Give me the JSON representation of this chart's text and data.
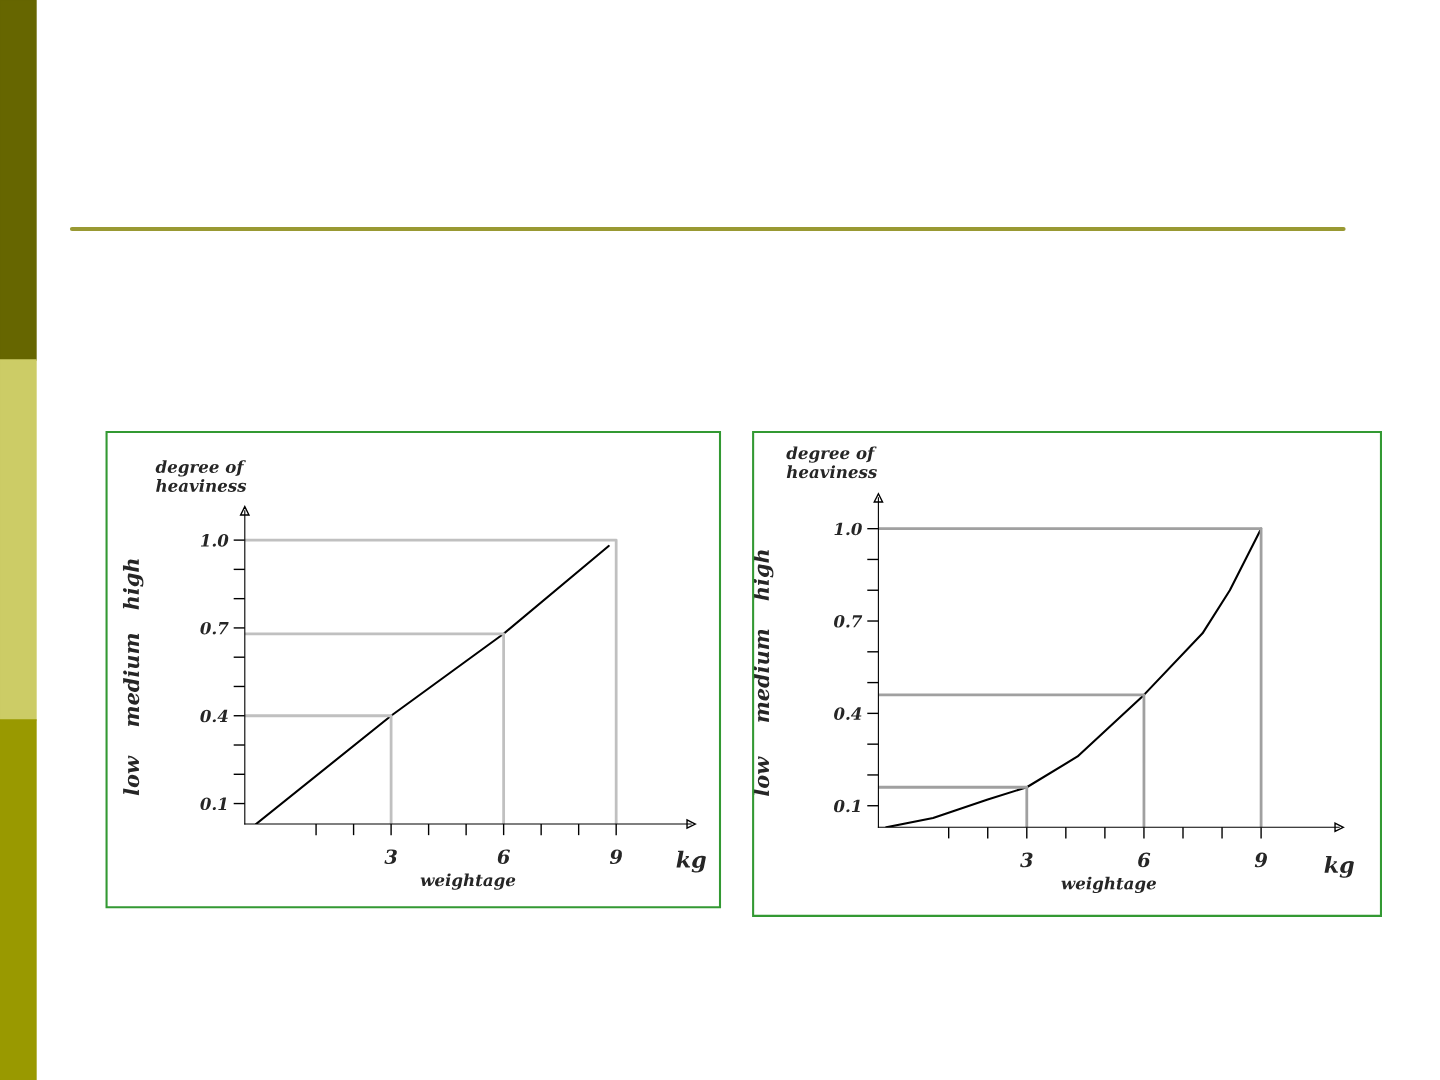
{
  "chart_data": [
    {
      "type": "line",
      "xlabel": "weightage",
      "ylabel": "degree of\nheaviness",
      "annotations": [
        "kg",
        "low",
        "medium",
        "high"
      ],
      "x": [
        -0.6,
        3,
        6,
        8.8
      ],
      "series": [
        {
          "color": "#000000",
          "values": [
            0.03,
            0.4,
            0.68,
            0.98
          ]
        },
        {
          "color": "#c0c0c0",
          "x": [
            -0.9,
            3,
            3
          ],
          "values": [
            0.4,
            0.4,
            0.03
          ]
        },
        {
          "color": "#c0c0c0",
          "x": [
            -0.9,
            6,
            6
          ],
          "values": [
            0.68,
            0.68,
            0.03
          ]
        },
        {
          "color": "#c0c0c0",
          "x": [
            -0.9,
            9,
            9
          ],
          "values": [
            1.0,
            1.0,
            0.03
          ]
        }
      ],
      "xlim": [
        -0.9,
        11
      ],
      "ylim": [
        0.03,
        1.1
      ],
      "xticks": [
        {
          "value": 1,
          "label": null
        },
        {
          "value": 2,
          "label": null
        },
        3,
        {
          "value": 4,
          "label": null
        },
        {
          "value": 5,
          "label": null
        },
        6,
        {
          "value": 7,
          "label": null
        },
        {
          "value": 8,
          "label": null
        },
        9
      ],
      "yticks": [
        0.1,
        {
          "value": 0.2,
          "label": null
        },
        {
          "value": 0.3,
          "label": null
        },
        0.4,
        {
          "value": 0.5,
          "label": null
        },
        {
          "value": 0.6,
          "label": null
        },
        0.7,
        {
          "value": 0.8,
          "label": null
        },
        {
          "value": 0.9,
          "label": null
        },
        {
          "value": 1.0,
          "label": "1.0"
        }
      ],
      "grid": false,
      "legend": false,
      "marker": "none",
      "line_style": "solid"
    },
    {
      "type": "line",
      "xlabel": "weightage",
      "ylabel": "degree of\nheaviness",
      "annotations": [
        "kg",
        "low",
        "medium",
        "high"
      ],
      "x": [
        -0.6,
        0.6,
        2,
        3,
        4.3,
        6,
        7.5,
        8.2,
        9
      ],
      "series": [
        {
          "color": "#000000",
          "values": [
            0.03,
            0.06,
            0.12,
            0.16,
            0.26,
            0.46,
            0.66,
            0.8,
            1.0
          ]
        },
        {
          "color": "#a0a0a0",
          "x": [
            -0.8,
            3,
            3
          ],
          "values": [
            0.16,
            0.16,
            0.03
          ]
        },
        {
          "color": "#a0a0a0",
          "x": [
            -0.8,
            6,
            6
          ],
          "values": [
            0.46,
            0.46,
            0.03
          ]
        },
        {
          "color": "#a0a0a0",
          "x": [
            -0.8,
            9,
            9
          ],
          "values": [
            1.0,
            1.0,
            0.03
          ]
        }
      ],
      "xlim": [
        -0.8,
        11
      ],
      "ylim": [
        0.03,
        1.1
      ],
      "xticks": [
        {
          "value": 1,
          "label": null
        },
        {
          "value": 2,
          "label": null
        },
        3,
        {
          "value": 4,
          "label": null
        },
        {
          "value": 5,
          "label": null
        },
        6,
        {
          "value": 7,
          "label": null
        },
        {
          "value": 8,
          "label": null
        },
        9
      ],
      "yticks": [
        0.1,
        {
          "value": 0.2,
          "label": null
        },
        {
          "value": 0.3,
          "label": null
        },
        0.4,
        {
          "value": 0.5,
          "label": null
        },
        {
          "value": 0.6,
          "label": null
        },
        0.7,
        {
          "value": 0.8,
          "label": null
        },
        {
          "value": 0.9,
          "label": null
        },
        {
          "value": 1.0,
          "label": "1.0"
        }
      ],
      "grid": false,
      "legend": false,
      "marker": "none",
      "line_style": "solid"
    }
  ]
}
